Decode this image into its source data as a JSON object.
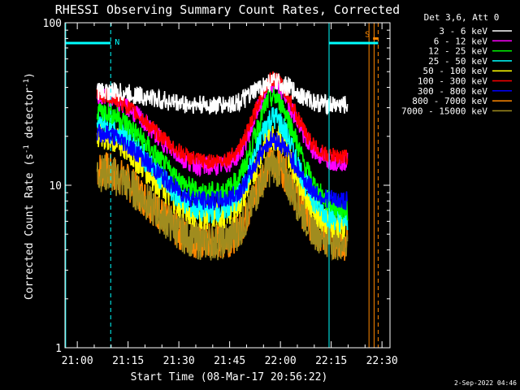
{
  "chart_data": {
    "type": "line",
    "title": "RHESSI Observing Summary Count Rates, Corrected",
    "xlabel": "Start Time (08-Mar-17 20:56:22)",
    "ylabel_main": "Corrected Count Rate (s",
    "ylabel_sup1": "-1",
    "ylabel_mid": " detector",
    "ylabel_sup2": "-1",
    "ylabel_end": ")",
    "yscale": "log",
    "ylim": [
      1,
      100
    ],
    "xlim_minutes_after_start": [
      0,
      96
    ],
    "y_ticks": [
      {
        "value": 1,
        "label": "1"
      },
      {
        "value": 10,
        "label": "10"
      },
      {
        "value": 100,
        "label": "100"
      }
    ],
    "x_ticks": [
      {
        "minute": 3.633,
        "label": "21:00"
      },
      {
        "minute": 18.633,
        "label": "21:15"
      },
      {
        "minute": 33.633,
        "label": "21:30"
      },
      {
        "minute": 48.633,
        "label": "21:45"
      },
      {
        "minute": 63.633,
        "label": "22:00"
      },
      {
        "minute": 78.633,
        "label": "22:15"
      },
      {
        "minute": 93.633,
        "label": "22:30"
      }
    ],
    "legend_header": "Det 3,6, Att 0",
    "legend_position": "top-right-outside",
    "series": [
      {
        "name": "3 - 6 keV",
        "color": "#ffffff",
        "pre": 38,
        "base": 31,
        "peak": 43,
        "end": 31,
        "noise": 0.06
      },
      {
        "name": "6 - 12 keV",
        "color": "#ff00ff",
        "pre": 36,
        "base": 13,
        "peak": 42,
        "end": 14,
        "noise": 0.06
      },
      {
        "name": "12 - 25 keV",
        "color": "#00ff00",
        "pre": 29,
        "base": 9,
        "peak": 35,
        "end": 7,
        "noise": 0.07
      },
      {
        "name": "25 - 50 keV",
        "color": "#00ffff",
        "pre": 24,
        "base": 7,
        "peak": 26,
        "end": 6,
        "noise": 0.08
      },
      {
        "name": "50 - 100 keV",
        "color": "#ffff00",
        "pre": 20,
        "base": 6.5,
        "peak": 20,
        "end": 5.5,
        "noise": 0.09
      },
      {
        "name": "100 - 300 keV",
        "color": "#ff0000",
        "pre": 36,
        "base": 14,
        "peak": 45,
        "end": 15,
        "noise": 0.05
      },
      {
        "name": "300 - 800 keV",
        "color": "#0000ff",
        "pre": 21,
        "base": 8,
        "peak": 19,
        "end": 8,
        "noise": 0.06
      },
      {
        "name": "800 - 7000 keV",
        "color": "#ff8800",
        "pre": 12.5,
        "base": 4.5,
        "peak": 14,
        "end": 4.5,
        "noise": 0.12
      },
      {
        "name": "7000 - 15000 keV",
        "color": "#a08c1e",
        "pre": 12,
        "base": 4.5,
        "peak": 13,
        "end": 4.5,
        "noise": 0.12
      }
    ],
    "data_interval_minutes": [
      9.5,
      83.5
    ],
    "peak_minute": 61.5,
    "flags": [
      {
        "label": "N",
        "color": "#00ffff",
        "level": 75,
        "from_minute": 0,
        "to_minute": 13.5
      },
      {
        "label": "S",
        "color": "#00ffff",
        "level": 75,
        "from_minute": 78.0,
        "to_minute": 92.5
      },
      {
        "label": "S",
        "color": "#ff8800",
        "level": 80,
        "from_minute": 91.0,
        "to_minute": 92.5
      }
    ],
    "vertical_markers": [
      {
        "minute": 0.2,
        "color": "#00ffff",
        "style": "solid"
      },
      {
        "minute": 13.5,
        "color": "#00ffff",
        "style": "dashed"
      },
      {
        "minute": 78.0,
        "color": "#00ffff",
        "style": "solid"
      },
      {
        "minute": 89.8,
        "color": "#ff8800",
        "style": "solid"
      },
      {
        "minute": 91.3,
        "color": "#ff8800",
        "style": "solid"
      },
      {
        "minute": 92.5,
        "color": "#ff8800",
        "style": "dashed"
      }
    ],
    "grid": false
  },
  "footer": {
    "timestamp": "2-Sep-2022 04:46"
  }
}
